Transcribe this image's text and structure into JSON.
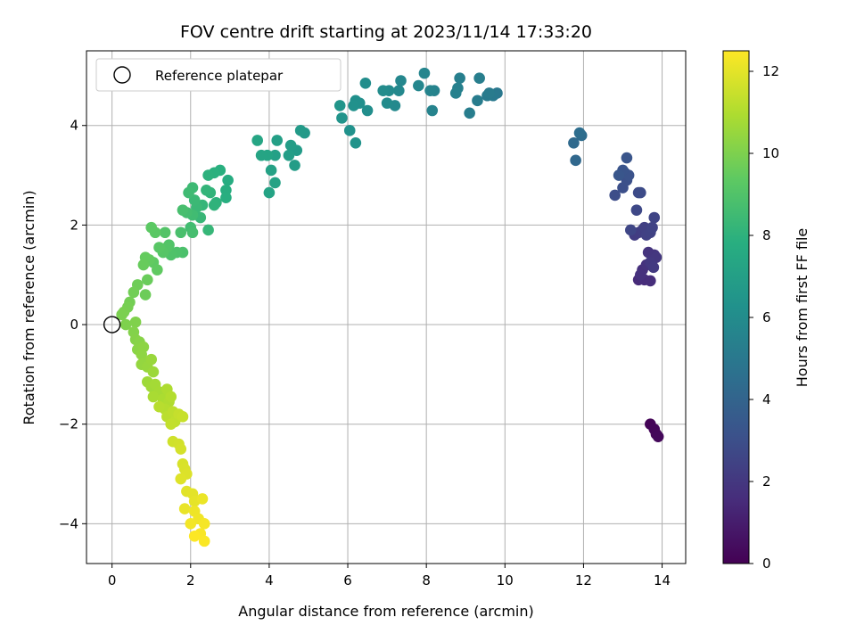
{
  "chart_data": {
    "type": "scatter",
    "title": "FOV centre drift starting at 2023/11/14 17:33:20",
    "xlabel": "Angular distance from reference (arcmin)",
    "ylabel": "Rotation from reference (arcmin)",
    "xlim": [
      -0.65,
      14.6
    ],
    "ylim": [
      -4.8,
      5.5
    ],
    "xticks": [
      0,
      2,
      4,
      6,
      8,
      10,
      12,
      14
    ],
    "yticks": [
      -4,
      -2,
      0,
      2,
      4
    ],
    "grid": true,
    "legend": {
      "placement": "top-left",
      "entries": [
        "Reference platepar"
      ]
    },
    "reference_point": {
      "x": 0,
      "y": 0,
      "label": "Reference platepar"
    },
    "colorbar": {
      "label": "Hours from first FF file",
      "colormap": "viridis",
      "range": [
        0,
        12.5
      ],
      "ticks": [
        0,
        2,
        4,
        6,
        8,
        10,
        12
      ]
    },
    "series": [
      {
        "values": [
          [
            13.7,
            -2.0,
            0.1
          ],
          [
            13.8,
            -2.1,
            0.15
          ],
          [
            13.85,
            -2.2,
            0.2
          ],
          [
            13.9,
            -2.25,
            0.25
          ],
          [
            13.4,
            0.9,
            1.5
          ],
          [
            13.55,
            0.9,
            1.55
          ],
          [
            13.7,
            0.88,
            1.6
          ],
          [
            13.5,
            1.1,
            1.7
          ],
          [
            13.45,
            1.0,
            1.75
          ],
          [
            13.6,
            1.2,
            1.8
          ],
          [
            13.65,
            1.45,
            1.85
          ],
          [
            13.8,
            1.4,
            1.9
          ],
          [
            13.75,
            1.3,
            1.95
          ],
          [
            13.85,
            1.35,
            2.0
          ],
          [
            13.7,
            1.25,
            2.05
          ],
          [
            13.78,
            1.15,
            2.1
          ],
          [
            13.3,
            1.8,
            2.2
          ],
          [
            13.4,
            1.85,
            2.25
          ],
          [
            13.5,
            1.9,
            2.3
          ],
          [
            13.55,
            1.95,
            2.35
          ],
          [
            13.6,
            1.8,
            2.4
          ],
          [
            13.7,
            1.85,
            2.45
          ],
          [
            13.75,
            1.95,
            2.5
          ],
          [
            13.8,
            2.15,
            2.55
          ],
          [
            13.2,
            1.9,
            2.6
          ],
          [
            13.35,
            2.3,
            2.7
          ],
          [
            13.4,
            2.65,
            2.8
          ],
          [
            13.45,
            2.65,
            2.85
          ],
          [
            12.8,
            2.6,
            2.9
          ],
          [
            13.0,
            2.75,
            3.0
          ],
          [
            13.1,
            2.9,
            3.05
          ],
          [
            13.05,
            3.05,
            3.1
          ],
          [
            13.15,
            3.0,
            3.15
          ],
          [
            13.0,
            3.1,
            3.2
          ],
          [
            13.1,
            3.35,
            3.25
          ],
          [
            12.9,
            3.0,
            3.3
          ],
          [
            11.8,
            3.3,
            4.2
          ],
          [
            11.75,
            3.65,
            4.3
          ],
          [
            11.95,
            3.8,
            4.4
          ],
          [
            11.9,
            3.85,
            4.5
          ],
          [
            9.8,
            4.65,
            5.0
          ],
          [
            9.7,
            4.6,
            5.05
          ],
          [
            9.55,
            4.6,
            5.1
          ],
          [
            9.6,
            4.65,
            5.15
          ],
          [
            9.3,
            4.5,
            5.2
          ],
          [
            9.1,
            4.25,
            5.25
          ],
          [
            9.35,
            4.95,
            5.3
          ],
          [
            8.85,
            4.95,
            5.35
          ],
          [
            8.8,
            4.75,
            5.4
          ],
          [
            8.75,
            4.65,
            5.45
          ],
          [
            8.2,
            4.7,
            5.5
          ],
          [
            8.15,
            4.3,
            5.55
          ],
          [
            8.1,
            4.7,
            5.6
          ],
          [
            7.95,
            5.05,
            5.65
          ],
          [
            7.8,
            4.8,
            5.7
          ],
          [
            7.35,
            4.9,
            5.75
          ],
          [
            7.3,
            4.7,
            5.8
          ],
          [
            7.2,
            4.4,
            5.85
          ],
          [
            7.05,
            4.7,
            5.9
          ],
          [
            7.0,
            4.45,
            5.95
          ],
          [
            6.9,
            4.7,
            6.0
          ],
          [
            6.45,
            4.85,
            6.05
          ],
          [
            6.5,
            4.3,
            6.1
          ],
          [
            6.3,
            4.45,
            6.15
          ],
          [
            6.2,
            4.5,
            6.2
          ],
          [
            6.15,
            4.4,
            6.25
          ],
          [
            6.05,
            3.9,
            6.3
          ],
          [
            6.2,
            3.65,
            6.35
          ],
          [
            5.85,
            4.15,
            6.4
          ],
          [
            5.8,
            4.4,
            6.45
          ],
          [
            4.9,
            3.85,
            6.7
          ],
          [
            4.8,
            3.9,
            6.75
          ],
          [
            4.7,
            3.5,
            6.8
          ],
          [
            4.65,
            3.2,
            6.85
          ],
          [
            4.55,
            3.6,
            6.9
          ],
          [
            4.5,
            3.4,
            6.95
          ],
          [
            4.2,
            3.7,
            7.0
          ],
          [
            4.15,
            3.4,
            7.05
          ],
          [
            4.05,
            3.1,
            7.1
          ],
          [
            4.15,
            2.85,
            7.15
          ],
          [
            4.0,
            2.65,
            7.2
          ],
          [
            3.95,
            3.4,
            7.25
          ],
          [
            3.8,
            3.4,
            7.3
          ],
          [
            3.7,
            3.7,
            7.35
          ],
          [
            2.95,
            2.9,
            7.7
          ],
          [
            2.9,
            2.7,
            7.75
          ],
          [
            2.9,
            2.55,
            7.8
          ],
          [
            2.75,
            3.1,
            7.85
          ],
          [
            2.6,
            3.05,
            7.9
          ],
          [
            2.45,
            3.0,
            7.95
          ],
          [
            2.65,
            2.45,
            8.0
          ],
          [
            2.6,
            2.4,
            8.05
          ],
          [
            2.5,
            2.65,
            8.1
          ],
          [
            2.4,
            2.7,
            8.15
          ],
          [
            2.3,
            2.4,
            8.2
          ],
          [
            2.45,
            1.9,
            8.25
          ],
          [
            2.25,
            2.15,
            8.3
          ],
          [
            2.15,
            2.35,
            8.35
          ],
          [
            2.1,
            2.5,
            8.4
          ],
          [
            2.05,
            2.75,
            8.45
          ],
          [
            1.95,
            2.65,
            8.5
          ],
          [
            2.05,
            2.2,
            8.55
          ],
          [
            2.0,
            1.95,
            8.6
          ],
          [
            1.9,
            2.25,
            8.65
          ],
          [
            2.05,
            1.85,
            8.7
          ],
          [
            1.8,
            2.3,
            8.75
          ],
          [
            1.75,
            1.85,
            8.8
          ],
          [
            1.8,
            1.45,
            8.85
          ],
          [
            1.65,
            1.45,
            8.9
          ],
          [
            1.5,
            1.4,
            8.95
          ],
          [
            1.45,
            1.6,
            9.0
          ],
          [
            1.35,
            1.85,
            9.05
          ],
          [
            1.4,
            1.55,
            9.1
          ],
          [
            1.3,
            1.45,
            9.15
          ],
          [
            1.2,
            1.55,
            9.2
          ],
          [
            1.1,
            1.85,
            9.25
          ],
          [
            1.0,
            1.95,
            9.3
          ],
          [
            1.05,
            1.25,
            9.35
          ],
          [
            1.15,
            1.1,
            9.4
          ],
          [
            0.95,
            1.3,
            9.45
          ],
          [
            0.85,
            1.35,
            9.5
          ],
          [
            0.8,
            1.2,
            9.55
          ],
          [
            0.9,
            0.9,
            9.6
          ],
          [
            0.85,
            0.6,
            9.65
          ],
          [
            0.65,
            0.8,
            9.7
          ],
          [
            0.55,
            0.65,
            9.75
          ],
          [
            0.45,
            0.45,
            9.8
          ],
          [
            0.4,
            0.35,
            9.85
          ],
          [
            0.3,
            0.25,
            9.9
          ],
          [
            0.25,
            0.2,
            9.95
          ],
          [
            0.35,
            0.0,
            10.0
          ],
          [
            0.6,
            0.05,
            10.05
          ],
          [
            0.55,
            -0.15,
            10.1
          ],
          [
            0.6,
            -0.3,
            10.15
          ],
          [
            0.7,
            -0.35,
            10.2
          ],
          [
            0.65,
            -0.5,
            10.25
          ],
          [
            0.8,
            -0.45,
            10.3
          ],
          [
            0.75,
            -0.6,
            10.35
          ],
          [
            0.85,
            -0.75,
            10.4
          ],
          [
            0.75,
            -0.8,
            10.45
          ],
          [
            0.9,
            -0.85,
            10.5
          ],
          [
            1.0,
            -0.7,
            10.55
          ],
          [
            1.05,
            -0.95,
            10.6
          ],
          [
            0.9,
            -1.15,
            10.65
          ],
          [
            1.0,
            -1.25,
            10.7
          ],
          [
            1.1,
            -1.2,
            10.75
          ],
          [
            1.2,
            -1.35,
            10.8
          ],
          [
            1.05,
            -1.45,
            10.85
          ],
          [
            1.3,
            -1.5,
            10.9
          ],
          [
            1.4,
            -1.3,
            10.95
          ],
          [
            1.45,
            -1.55,
            11.0
          ],
          [
            1.5,
            -1.45,
            11.05
          ],
          [
            1.35,
            -1.7,
            11.1
          ],
          [
            1.2,
            -1.65,
            11.15
          ],
          [
            1.4,
            -1.85,
            11.2
          ],
          [
            1.55,
            -1.75,
            11.25
          ],
          [
            1.6,
            -1.95,
            11.3
          ],
          [
            1.5,
            -2.0,
            11.35
          ],
          [
            1.7,
            -1.8,
            11.4
          ],
          [
            1.8,
            -1.85,
            11.45
          ],
          [
            1.55,
            -2.35,
            11.6
          ],
          [
            1.7,
            -2.4,
            11.65
          ],
          [
            1.75,
            -2.5,
            11.7
          ],
          [
            1.8,
            -2.8,
            11.75
          ],
          [
            1.85,
            -2.9,
            11.8
          ],
          [
            1.9,
            -3.0,
            11.85
          ],
          [
            1.75,
            -3.1,
            11.9
          ],
          [
            1.9,
            -3.35,
            11.95
          ],
          [
            2.05,
            -3.4,
            12.0
          ],
          [
            2.1,
            -3.55,
            12.05
          ],
          [
            1.85,
            -3.7,
            12.1
          ],
          [
            2.3,
            -3.5,
            12.15
          ],
          [
            2.1,
            -3.75,
            12.2
          ],
          [
            2.2,
            -3.9,
            12.25
          ],
          [
            2.0,
            -4.0,
            12.3
          ],
          [
            2.35,
            -4.0,
            12.35
          ],
          [
            2.25,
            -4.2,
            12.4
          ],
          [
            2.35,
            -4.35,
            12.45
          ],
          [
            2.1,
            -4.25,
            12.48
          ]
        ]
      }
    ]
  }
}
